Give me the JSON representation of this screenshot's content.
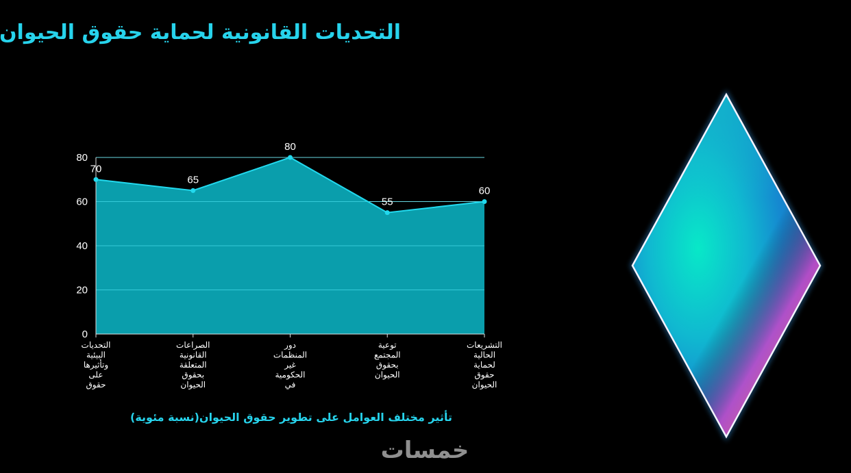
{
  "slide": {
    "title": "التحديات القانونية لحماية حقوق الحيوان",
    "watermark": "خمسات"
  },
  "colors": {
    "accent": "#27d3ec",
    "area_fill": "#0a9eac",
    "line": "#22d9ee",
    "background": "#000000"
  },
  "chart_data": {
    "type": "area",
    "categories": [
      [
        "التحديات",
        "البيئية",
        "وتأثيرها",
        "على",
        "حقوق"
      ],
      [
        "الصراعات",
        "القانونية",
        "المتعلقة",
        "بحقوق",
        "الحيوان"
      ],
      [
        "دور",
        "المنظمات",
        "غير",
        "الحكومية",
        "في"
      ],
      [
        "توعية",
        "المجتمع",
        "بحقوق",
        "الحيوان"
      ],
      [
        "التشريعات",
        "الحالية",
        "لحماية",
        "حقوق",
        "الحيوان"
      ]
    ],
    "values": [
      70,
      65,
      80,
      55,
      60
    ],
    "data_labels": [
      "70",
      "65",
      "80",
      "55",
      "60"
    ],
    "y_ticks": [
      0,
      20,
      40,
      60,
      80
    ],
    "ylim": [
      0,
      80
    ],
    "title": "تأثير مختلف العوامل على تطوير حقوق الحيوان(نسبة مئوية)",
    "grid": true,
    "legend": "none"
  }
}
